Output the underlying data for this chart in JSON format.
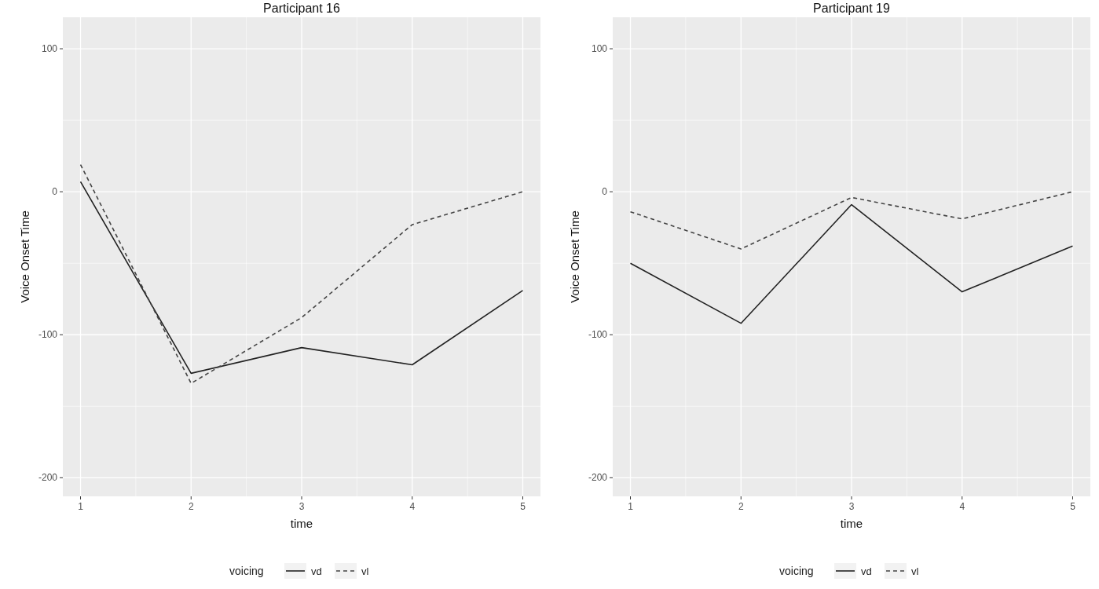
{
  "chart_data": [
    {
      "type": "line",
      "title": "Participant 16",
      "xlabel": "time",
      "ylabel": "Voice Onset Time",
      "legend_title": "voicing",
      "x": [
        1,
        2,
        3,
        4,
        5
      ],
      "xlim": [
        0.84,
        5.16
      ],
      "xticks": [
        1,
        2,
        3,
        4,
        5
      ],
      "ylim": [
        -213,
        122
      ],
      "yticks": [
        -200,
        -100,
        0,
        100
      ],
      "grid": true,
      "legend": "bottom",
      "series": [
        {
          "name": "vd",
          "color": "#222222",
          "line_style": "solid",
          "values": [
            7,
            -127,
            -109,
            -121,
            -69
          ]
        },
        {
          "name": "vl",
          "color": "#444444",
          "line_style": "dashed",
          "values": [
            19,
            -134,
            -88,
            -23,
            0
          ]
        }
      ]
    },
    {
      "type": "line",
      "title": "Participant 19",
      "xlabel": "time",
      "ylabel": "Voice Onset Time",
      "legend_title": "voicing",
      "x": [
        1,
        2,
        3,
        4,
        5
      ],
      "xlim": [
        0.84,
        5.16
      ],
      "xticks": [
        1,
        2,
        3,
        4,
        5
      ],
      "ylim": [
        -213,
        122
      ],
      "yticks": [
        -200,
        -100,
        0,
        100
      ],
      "grid": true,
      "legend": "bottom",
      "series": [
        {
          "name": "vd",
          "color": "#222222",
          "line_style": "solid",
          "values": [
            -50,
            -92,
            -9,
            -70,
            -38
          ]
        },
        {
          "name": "vl",
          "color": "#444444",
          "line_style": "dashed",
          "values": [
            -14,
            -40,
            -4,
            -19,
            0
          ]
        }
      ]
    }
  ]
}
